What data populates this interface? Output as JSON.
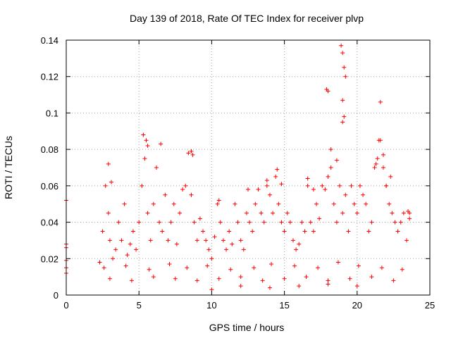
{
  "chart_data": {
    "type": "scatter",
    "title": "Day 139 of 2018, Rate Of TEC Index for receiver plvp",
    "xlabel": "GPS time / hours",
    "ylabel": "ROTI / TECUs",
    "xlim": [
      0,
      25
    ],
    "ylim": [
      0,
      0.14
    ],
    "x_ticks": [
      0,
      5,
      10,
      15,
      20,
      25
    ],
    "y_ticks": [
      0,
      0.02,
      0.04,
      0.06,
      0.08,
      0.1,
      0.12,
      0.14
    ],
    "grid": true,
    "marker": "plus",
    "series": [
      {
        "name": "ROTI",
        "color": "#ff0000",
        "x": [
          0.0,
          0.0,
          0.0,
          0.0,
          0.0,
          0.0,
          2.3,
          2.5,
          2.7,
          2.9,
          3.0,
          3.2,
          3.4,
          3.6,
          3.8,
          4.0,
          4.2,
          4.4,
          4.6,
          4.8,
          5.0,
          5.2,
          5.4,
          5.6,
          5.8,
          6.0,
          6.2,
          6.4,
          6.6,
          6.8,
          7.0,
          7.2,
          7.4,
          7.6,
          7.8,
          8.0,
          8.2,
          8.4,
          8.6,
          8.8,
          9.0,
          9.2,
          9.4,
          9.6,
          9.8,
          10.0,
          10.2,
          10.4,
          10.6,
          10.8,
          11.0,
          11.2,
          11.4,
          11.6,
          11.8,
          12.0,
          12.2,
          12.4,
          12.6,
          12.8,
          13.0,
          13.2,
          13.4,
          13.6,
          13.8,
          14.0,
          14.2,
          14.4,
          14.6,
          14.8,
          15.0,
          15.2,
          15.4,
          15.6,
          15.8,
          16.0,
          16.2,
          16.4,
          16.6,
          16.8,
          17.0,
          17.2,
          17.4,
          17.6,
          17.8,
          18.0,
          18.2,
          18.4,
          18.6,
          18.8,
          19.0,
          19.2,
          19.4,
          19.6,
          19.8,
          20.0,
          20.2,
          20.4,
          20.6,
          20.8,
          21.0,
          21.2,
          21.4,
          21.6,
          21.8,
          22.0,
          22.2,
          22.4,
          22.6,
          22.8,
          23.0,
          23.2,
          23.4,
          23.6,
          2.9,
          3.1,
          5.3,
          5.5,
          5.6,
          6.5,
          8.6,
          8.7,
          10.5,
          12.5,
          13.8,
          14.5,
          14.8,
          16.6,
          17.0,
          17.9,
          18.0,
          18.2,
          18.6,
          18.9,
          19.0,
          19.1,
          19.2,
          19.0,
          19.1,
          19.0,
          21.3,
          21.5,
          21.6,
          21.8,
          22.0,
          22.3,
          23.5,
          23.6,
          3.0,
          4.5,
          6.0,
          7.5,
          9.0,
          10.5,
          12.0,
          13.5,
          15.0,
          16.5,
          18.0,
          19.5,
          21.0,
          22.5,
          2.6,
          4.1,
          5.7,
          7.1,
          8.3,
          9.7,
          11.3,
          12.9,
          14.1,
          15.7,
          17.3,
          18.7,
          20.1,
          21.7,
          23.1,
          10.0,
          12.0,
          14.0,
          16.0,
          18.0,
          20.0
        ],
        "y": [
          0.052,
          0.028,
          0.026,
          0.019,
          0.015,
          0.012,
          0.018,
          0.035,
          0.06,
          0.045,
          0.03,
          0.02,
          0.025,
          0.04,
          0.03,
          0.05,
          0.022,
          0.028,
          0.035,
          0.025,
          0.04,
          0.06,
          0.075,
          0.045,
          0.03,
          0.05,
          0.07,
          0.04,
          0.035,
          0.055,
          0.03,
          0.04,
          0.05,
          0.028,
          0.045,
          0.058,
          0.06,
          0.078,
          0.055,
          0.04,
          0.03,
          0.042,
          0.035,
          0.03,
          0.025,
          0.02,
          0.032,
          0.05,
          0.04,
          0.03,
          0.025,
          0.035,
          0.028,
          0.05,
          0.04,
          0.03,
          0.025,
          0.045,
          0.04,
          0.035,
          0.05,
          0.058,
          0.045,
          0.04,
          0.06,
          0.055,
          0.045,
          0.065,
          0.05,
          0.04,
          0.035,
          0.045,
          0.04,
          0.03,
          0.025,
          0.028,
          0.04,
          0.035,
          0.06,
          0.04,
          0.035,
          0.05,
          0.042,
          0.06,
          0.058,
          0.065,
          0.07,
          0.05,
          0.04,
          0.06,
          0.045,
          0.055,
          0.035,
          0.06,
          0.05,
          0.045,
          0.06,
          0.055,
          0.05,
          0.035,
          0.04,
          0.07,
          0.075,
          0.085,
          0.07,
          0.06,
          0.05,
          0.045,
          0.04,
          0.035,
          0.04,
          0.045,
          0.03,
          0.045,
          0.072,
          0.062,
          0.088,
          0.085,
          0.082,
          0.083,
          0.079,
          0.077,
          0.052,
          0.058,
          0.063,
          0.069,
          0.061,
          0.064,
          0.058,
          0.113,
          0.112,
          0.08,
          0.074,
          0.137,
          0.133,
          0.125,
          0.12,
          0.107,
          0.098,
          0.095,
          0.072,
          0.085,
          0.106,
          0.077,
          0.06,
          0.065,
          0.046,
          0.042,
          0.009,
          0.008,
          0.01,
          0.009,
          0.008,
          0.009,
          0.01,
          0.008,
          0.009,
          0.01,
          0.008,
          0.009,
          0.01,
          0.008,
          0.015,
          0.016,
          0.014,
          0.017,
          0.015,
          0.016,
          0.014,
          0.015,
          0.017,
          0.016,
          0.015,
          0.018,
          0.016,
          0.015,
          0.014,
          0.003,
          0.005,
          0.004,
          0.005,
          0.006,
          0.005
        ]
      }
    ]
  }
}
